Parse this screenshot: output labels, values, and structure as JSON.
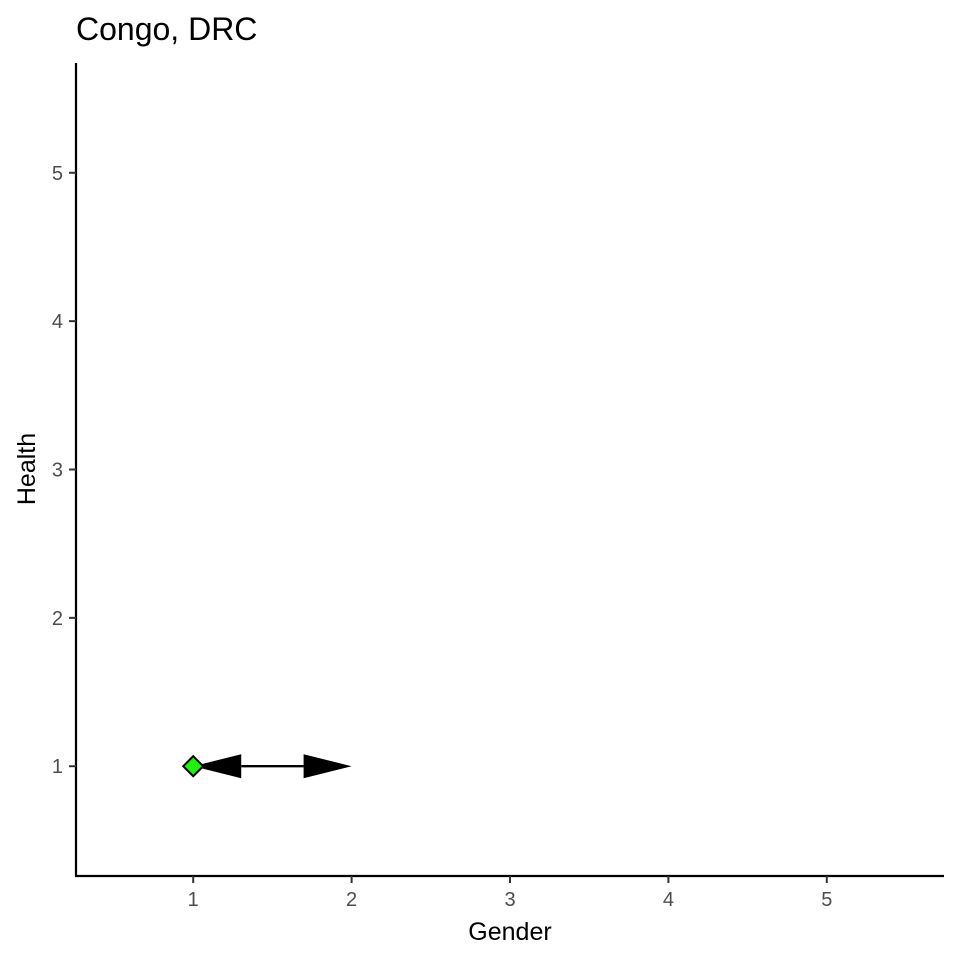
{
  "chart_data": {
    "type": "scatter",
    "title": "Congo, DRC",
    "xlabel": "Gender",
    "ylabel": "Health",
    "xlim": [
      0.26,
      5.74
    ],
    "ylim": [
      0.26,
      5.74
    ],
    "x_ticks": [
      1,
      2,
      3,
      4,
      5
    ],
    "y_ticks": [
      1,
      2,
      3,
      4,
      5
    ],
    "grid": false,
    "points": [
      {
        "x": 1,
        "y": 1,
        "color": "#22ee11",
        "shape": "diamond"
      }
    ],
    "arrows": [
      {
        "x_start": 1,
        "y_start": 1,
        "x_end": 2,
        "y_end": 1,
        "both_ends": true
      }
    ]
  }
}
